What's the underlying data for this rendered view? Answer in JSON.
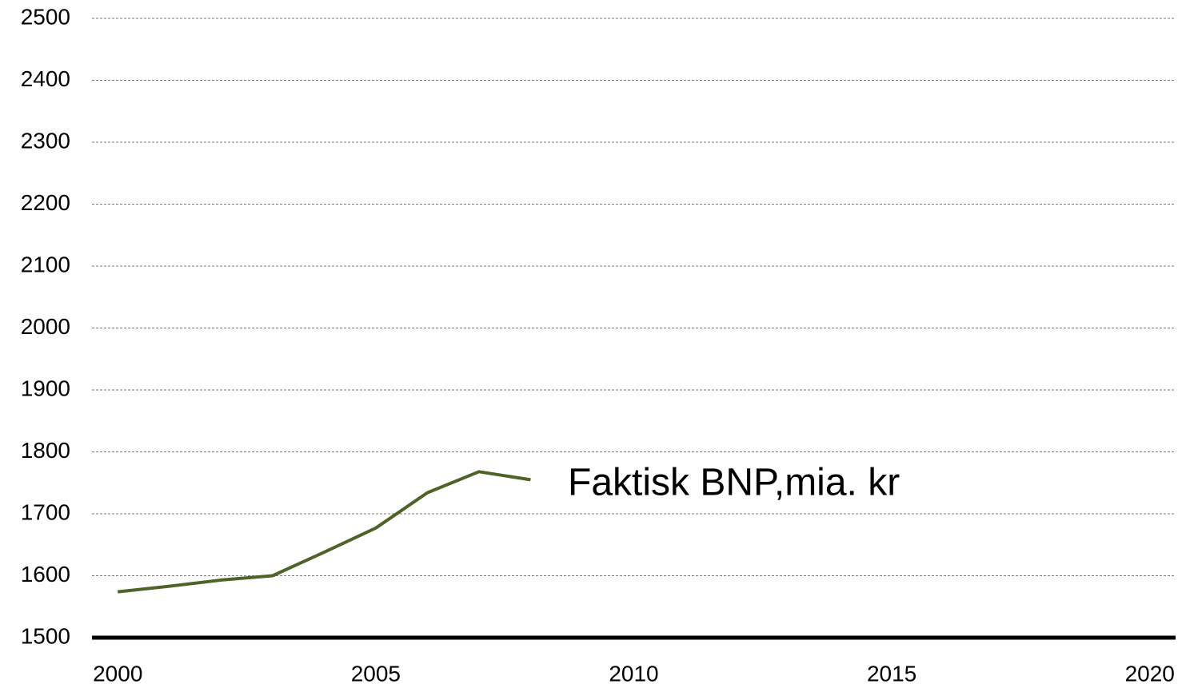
{
  "chart_data": {
    "type": "line",
    "x": [
      2000,
      2001,
      2002,
      2003,
      2004,
      2005,
      2006,
      2007,
      2008
    ],
    "series": [
      {
        "color": "#4f6228",
        "values": [
          1574,
          1583,
          1593,
          1600,
          1638,
          1677,
          1734,
          1768,
          1755
        ]
      }
    ],
    "annotation": "Faktisk BNP,mia. kr",
    "xlim": [
      1999.5,
      2020.5
    ],
    "xticks": [
      2000,
      2005,
      2010,
      2015,
      2020
    ],
    "ylim": [
      1500,
      2500
    ],
    "yticks": [
      1500,
      1600,
      1700,
      1800,
      1900,
      2000,
      2100,
      2200,
      2300,
      2400,
      2500
    ],
    "grid": true
  }
}
